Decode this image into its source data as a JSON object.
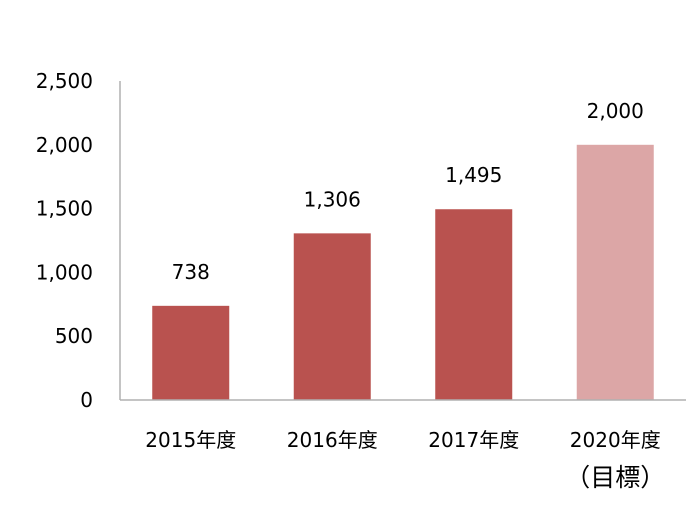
{
  "chart_data": {
    "type": "bar",
    "title": "",
    "xlabel": "",
    "ylabel": "",
    "categories": [
      "2015年度",
      "2016年度",
      "2017年度",
      "2020年度"
    ],
    "category_sublabels": [
      "",
      "",
      "",
      "（目標）"
    ],
    "values": [
      738,
      1306,
      1495,
      2000
    ],
    "value_labels": [
      "738",
      "1,306",
      "1,495",
      "2,000"
    ],
    "yticks": [
      0,
      500,
      1000,
      1500,
      2000,
      2500
    ],
    "ytick_labels": [
      "0",
      "500",
      "1,000",
      "1,500",
      "2,000",
      "2,500"
    ],
    "ylim": [
      0,
      2500
    ],
    "grid": false,
    "legend": "none",
    "bar_colors": [
      "#b9524f",
      "#b9524f",
      "#b9524f",
      "#dca6a6"
    ],
    "axis_color": "#b0b0b0"
  }
}
